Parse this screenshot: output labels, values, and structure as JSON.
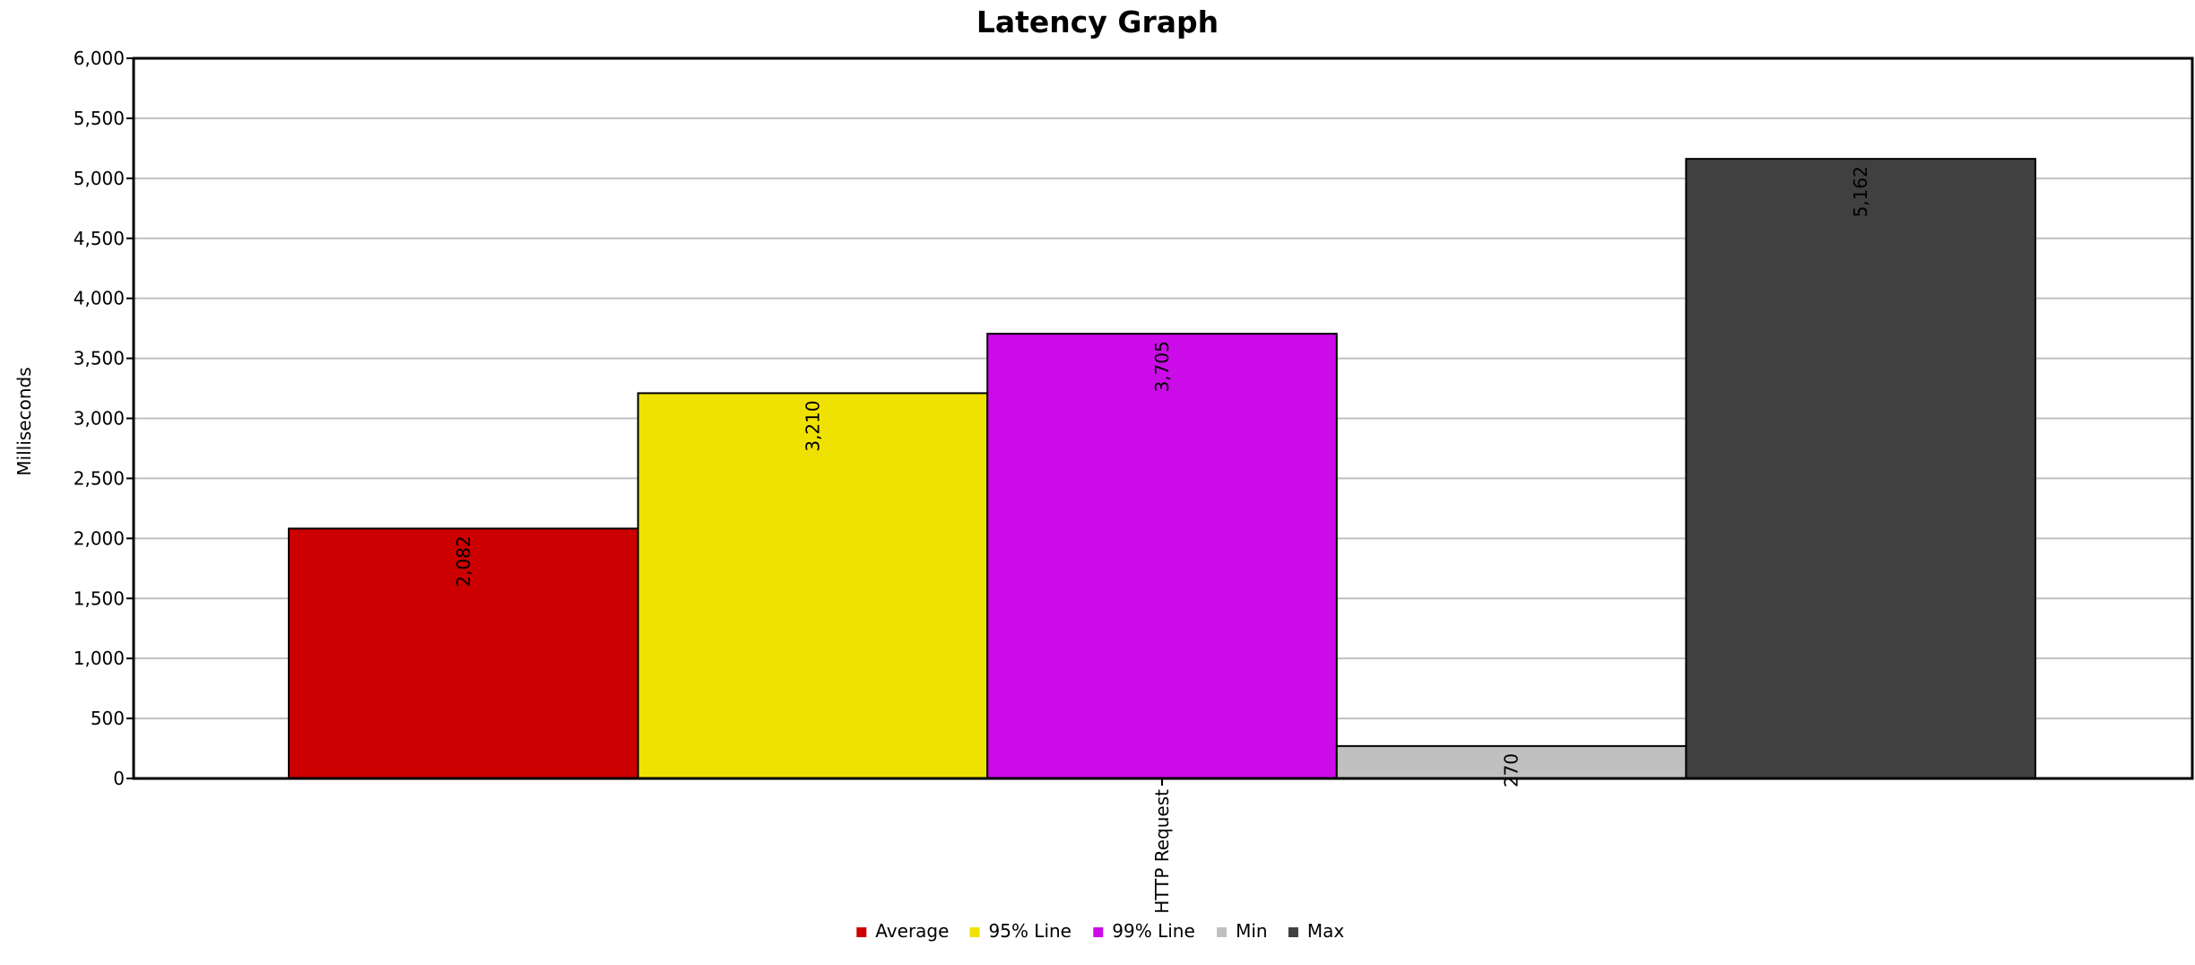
{
  "chart_data": {
    "type": "bar",
    "title": "Latency Graph",
    "xlabel": "",
    "ylabel": "Milliseconds",
    "categories": [
      "HTTP Request"
    ],
    "series": [
      {
        "name": "Average",
        "values": [
          2082
        ],
        "color": "#cc0000",
        "label": "2,082"
      },
      {
        "name": "95% Line",
        "values": [
          3210
        ],
        "color": "#f0e200",
        "label": "3,210"
      },
      {
        "name": "99% Line",
        "values": [
          3705
        ],
        "color": "#cc0ce8",
        "label": "3,705"
      },
      {
        "name": "Min",
        "values": [
          270
        ],
        "color": "#c0c0c0",
        "label": "270"
      },
      {
        "name": "Max",
        "values": [
          5162
        ],
        "color": "#404040",
        "label": "5,162"
      }
    ],
    "ylim": [
      0,
      6000
    ],
    "yticks": [
      "0",
      "500",
      "1,000",
      "1,500",
      "2,000",
      "2,500",
      "3,000",
      "3,500",
      "4,000",
      "4,500",
      "5,000",
      "5,500",
      "6,000"
    ],
    "grid": true,
    "legend_position": "bottom"
  }
}
